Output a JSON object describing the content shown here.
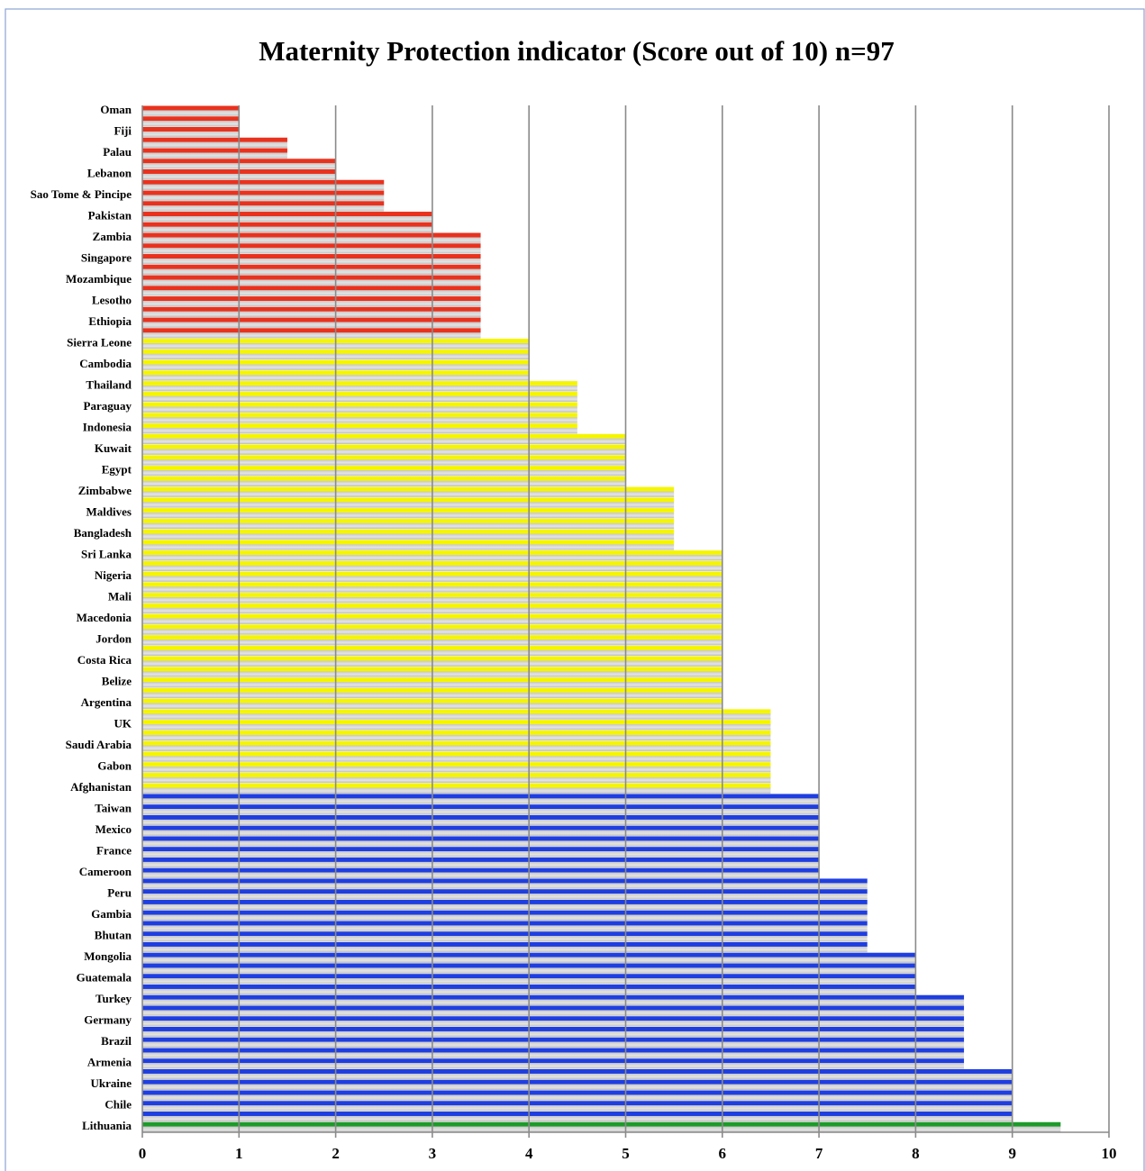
{
  "chart_data": {
    "type": "barh",
    "title": "Maternity Protection indicator (Score   out of 10) n=97",
    "categories": [
      "Oman",
      null,
      "Fiji",
      null,
      "Palau",
      null,
      "Lebanon",
      null,
      "Sao Tome & Pincipe",
      null,
      "Pakistan",
      null,
      "Zambia",
      null,
      "Singapore",
      null,
      "Mozambique",
      null,
      "Lesotho",
      null,
      "Ethiopia",
      null,
      "Sierra Leone",
      null,
      "Cambodia",
      null,
      "Thailand",
      null,
      "Paraguay",
      null,
      "Indonesia",
      null,
      "Kuwait",
      null,
      "Egypt",
      null,
      "Zimbabwe",
      null,
      "Maldives",
      null,
      "Bangladesh",
      null,
      "Sri Lanka",
      null,
      "Nigeria",
      null,
      "Mali",
      null,
      "Macedonia",
      null,
      "Jordon",
      null,
      "Costa Rica",
      null,
      "Belize",
      null,
      "Argentina",
      null,
      "UK",
      null,
      "Saudi Arabia",
      null,
      "Gabon",
      null,
      "Afghanistan",
      null,
      "Taiwan",
      null,
      "Mexico",
      null,
      "France",
      null,
      "Cameroon",
      null,
      "Peru",
      null,
      "Gambia",
      null,
      "Bhutan",
      null,
      "Mongolia",
      null,
      "Guatemala",
      null,
      "Turkey",
      null,
      "Germany",
      null,
      "Brazil",
      null,
      "Armenia",
      null,
      "Ukraine",
      null,
      "Chile",
      null,
      "Lithuania"
    ],
    "values": [
      1,
      1,
      1,
      1.5,
      1.5,
      2,
      2,
      2.5,
      2.5,
      2.5,
      3,
      3,
      3.5,
      3.5,
      3.5,
      3.5,
      3.5,
      3.5,
      3.5,
      3.5,
      3.5,
      3.5,
      4,
      4,
      4,
      4,
      4.5,
      4.5,
      4.5,
      4.5,
      4.5,
      5,
      5,
      5,
      5,
      5,
      5.5,
      5.5,
      5.5,
      5.5,
      5.5,
      5.5,
      6,
      6,
      6,
      6,
      6,
      6,
      6,
      6,
      6,
      6,
      6,
      6,
      6,
      6,
      6,
      6.5,
      6.5,
      6.5,
      6.5,
      6.5,
      6.5,
      6.5,
      6.5,
      7,
      7,
      7,
      7,
      7,
      7,
      7,
      7,
      7.5,
      7.5,
      7.5,
      7.5,
      7.5,
      7.5,
      7.5,
      8,
      8,
      8,
      8,
      8.5,
      8.5,
      8.5,
      8.5,
      8.5,
      8.5,
      8.5,
      9,
      9,
      9,
      9,
      9,
      9.5
    ],
    "colors": [
      "#e8321e",
      "#e8321e",
      "#e8321e",
      "#e8321e",
      "#e8321e",
      "#e8321e",
      "#e8321e",
      "#e8321e",
      "#e8321e",
      "#e8321e",
      "#e8321e",
      "#e8321e",
      "#e8321e",
      "#e8321e",
      "#e8321e",
      "#e8321e",
      "#e8321e",
      "#e8321e",
      "#e8321e",
      "#e8321e",
      "#e8321e",
      "#e8321e",
      "#f5f500",
      "#f5f500",
      "#f5f500",
      "#f5f500",
      "#f5f500",
      "#f5f500",
      "#f5f500",
      "#f5f500",
      "#f5f500",
      "#f5f500",
      "#f5f500",
      "#f5f500",
      "#f5f500",
      "#f5f500",
      "#f5f500",
      "#f5f500",
      "#f5f500",
      "#f5f500",
      "#f5f500",
      "#f5f500",
      "#f5f500",
      "#f5f500",
      "#f5f500",
      "#f5f500",
      "#f5f500",
      "#f5f500",
      "#f5f500",
      "#f5f500",
      "#f5f500",
      "#f5f500",
      "#f5f500",
      "#f5f500",
      "#f5f500",
      "#f5f500",
      "#f5f500",
      "#f5f500",
      "#f5f500",
      "#f5f500",
      "#f5f500",
      "#f5f500",
      "#f5f500",
      "#f5f500",
      "#f5f500",
      "#1f3ee0",
      "#1f3ee0",
      "#1f3ee0",
      "#1f3ee0",
      "#1f3ee0",
      "#1f3ee0",
      "#1f3ee0",
      "#1f3ee0",
      "#1f3ee0",
      "#1f3ee0",
      "#1f3ee0",
      "#1f3ee0",
      "#1f3ee0",
      "#1f3ee0",
      "#1f3ee0",
      "#1f3ee0",
      "#1f3ee0",
      "#1f3ee0",
      "#1f3ee0",
      "#1f3ee0",
      "#1f3ee0",
      "#1f3ee0",
      "#1f3ee0",
      "#1f3ee0",
      "#1f3ee0",
      "#1f3ee0",
      "#1f3ee0",
      "#1f3ee0",
      "#1f3ee0",
      "#1f3ee0",
      "#1f3ee0",
      "#1e9a2a"
    ],
    "xlim": [
      0,
      10
    ],
    "xticks": [
      0,
      1,
      2,
      3,
      4,
      5,
      6,
      7,
      8,
      9,
      10
    ],
    "grid": true
  }
}
